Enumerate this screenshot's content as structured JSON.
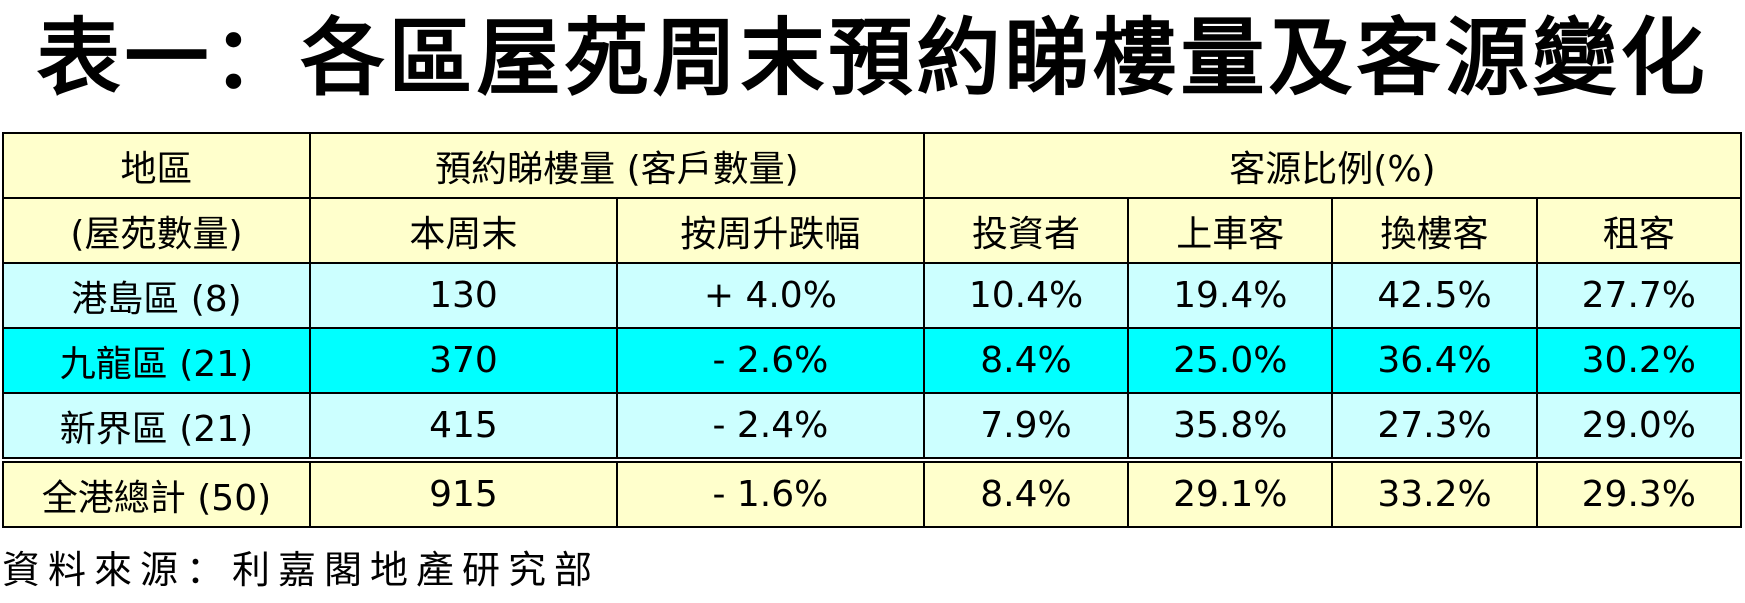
{
  "title": "表一：各區屋苑周末預約睇樓量及客源變化",
  "header": {
    "region_line1": "地區",
    "region_line2": "(屋苑數量)",
    "viewings_group": "預約睇樓量 (客戶數量)",
    "source_group": "客源比例(%)",
    "this_weekend": "本周末",
    "wow_change": "按周升跌幅",
    "investor": "投資者",
    "first_time": "上車客",
    "upgrader": "換樓客",
    "tenant": "租客"
  },
  "rows": [
    {
      "region": "港島區 (8)",
      "this_weekend": "130",
      "wow_change": "+ 4.0%",
      "investor": "10.4%",
      "first_time": "19.4%",
      "upgrader": "42.5%",
      "tenant": "27.7%"
    },
    {
      "region": "九龍區 (21)",
      "this_weekend": "370",
      "wow_change": "- 2.6%",
      "investor": "8.4%",
      "first_time": "25.0%",
      "upgrader": "36.4%",
      "tenant": "30.2%"
    },
    {
      "region": "新界區 (21)",
      "this_weekend": "415",
      "wow_change": "- 2.4%",
      "investor": "7.9%",
      "first_time": "35.8%",
      "upgrader": "27.3%",
      "tenant": "29.0%"
    },
    {
      "region": "全港總計 (50)",
      "this_weekend": "915",
      "wow_change": "- 1.6%",
      "investor": "8.4%",
      "first_time": "29.1%",
      "upgrader": "33.2%",
      "tenant": "29.3%"
    }
  ],
  "source": "資料來源：利嘉閣地產研究部",
  "colors": {
    "header_bg": "#ffffcc",
    "row_light_bg": "#ccffff",
    "row_highlight_bg": "#00ffff"
  }
}
